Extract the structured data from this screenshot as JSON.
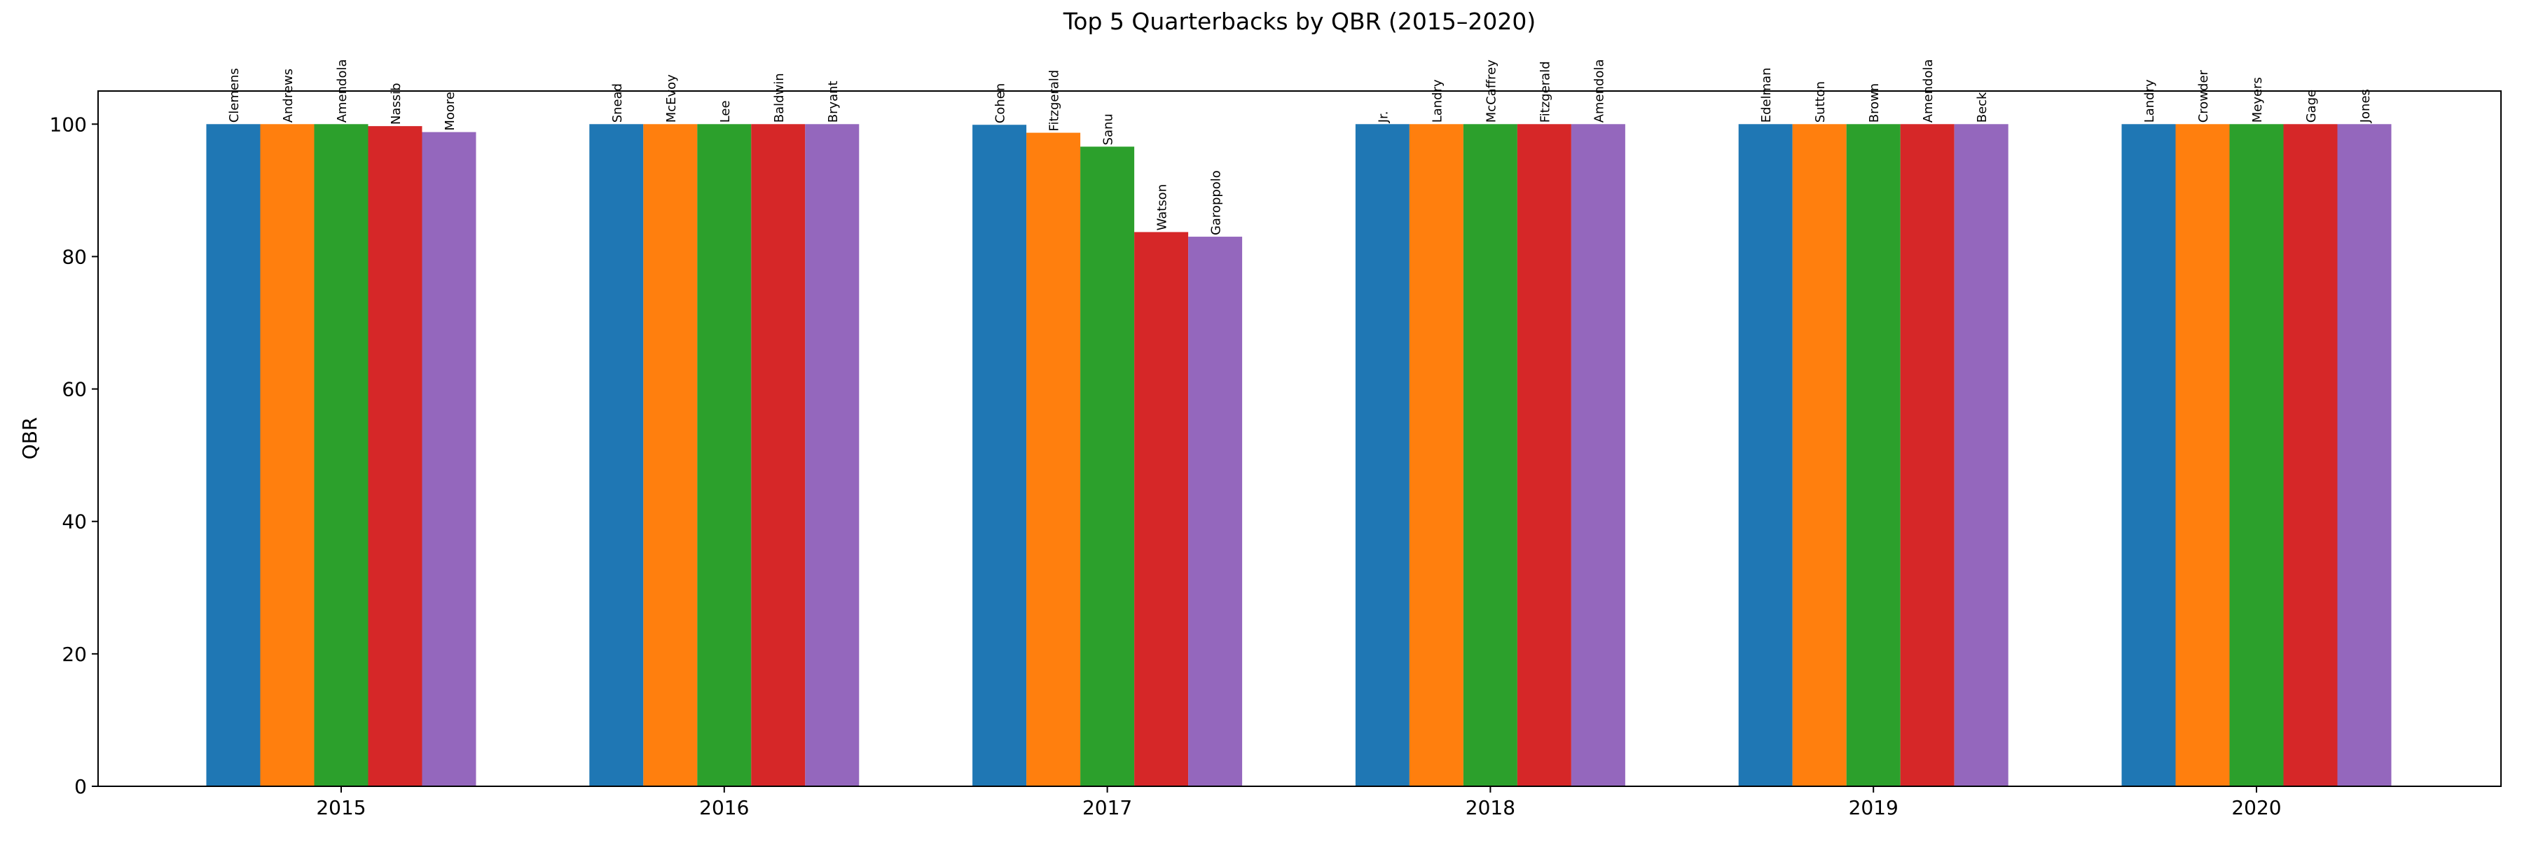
{
  "chart_data": {
    "type": "bar",
    "title": "Top 5 Quarterbacks by QBR (2015–2020)",
    "xlabel": "",
    "ylabel": "QBR",
    "ylim": [
      0,
      105
    ],
    "yticks": [
      0,
      20,
      40,
      60,
      80,
      100
    ],
    "categories": [
      "2015",
      "2016",
      "2017",
      "2018",
      "2019",
      "2020"
    ],
    "grid": false,
    "legend": "none",
    "rank_colors": [
      "#1f77b4",
      "#ff7f0e",
      "#2ca02c",
      "#d62728",
      "#9467bd"
    ],
    "groups": [
      {
        "year": "2015",
        "bars": [
          {
            "label": "Clemens",
            "value": 100
          },
          {
            "label": "Andrews",
            "value": 100
          },
          {
            "label": "Amendola",
            "value": 100
          },
          {
            "label": "Nassib",
            "value": 99.7
          },
          {
            "label": "Moore",
            "value": 98.8
          }
        ]
      },
      {
        "year": "2016",
        "bars": [
          {
            "label": "Snead",
            "value": 100
          },
          {
            "label": "McEvoy",
            "value": 100
          },
          {
            "label": "Lee",
            "value": 100
          },
          {
            "label": "Baldwin",
            "value": 100
          },
          {
            "label": "Bryant",
            "value": 100
          }
        ]
      },
      {
        "year": "2017",
        "bars": [
          {
            "label": "Cohen",
            "value": 99.9
          },
          {
            "label": "Fitzgerald",
            "value": 98.7
          },
          {
            "label": "Sanu",
            "value": 96.6
          },
          {
            "label": "Watson",
            "value": 83.7
          },
          {
            "label": "Garoppolo",
            "value": 83.0
          }
        ]
      },
      {
        "year": "2018",
        "bars": [
          {
            "label": "Jr.",
            "value": 100
          },
          {
            "label": "Landry",
            "value": 100
          },
          {
            "label": "McCaffrey",
            "value": 100
          },
          {
            "label": "Fitzgerald",
            "value": 100
          },
          {
            "label": "Amendola",
            "value": 100
          }
        ]
      },
      {
        "year": "2019",
        "bars": [
          {
            "label": "Edelman",
            "value": 100
          },
          {
            "label": "Sutton",
            "value": 100
          },
          {
            "label": "Brown",
            "value": 100
          },
          {
            "label": "Amendola",
            "value": 100
          },
          {
            "label": "Beck",
            "value": 100
          }
        ]
      },
      {
        "year": "2020",
        "bars": [
          {
            "label": "Landry",
            "value": 100
          },
          {
            "label": "Crowder",
            "value": 100
          },
          {
            "label": "Meyers",
            "value": 100
          },
          {
            "label": "Gage",
            "value": 100
          },
          {
            "label": "Jones",
            "value": 100
          }
        ]
      }
    ]
  }
}
